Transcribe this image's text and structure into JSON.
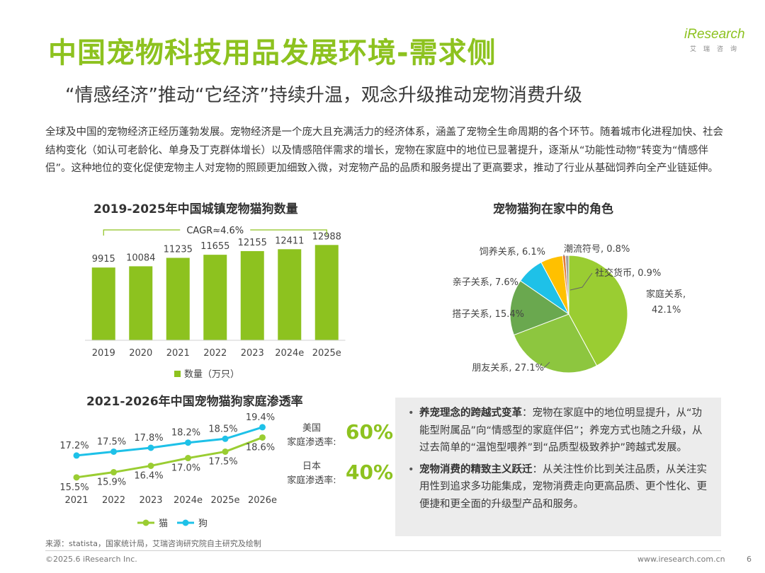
{
  "header": {
    "title": "中国宠物科技用品发展环境-需求侧",
    "subtitle": "“情感经济”推动“它经济”持续升温，观念升级推动宠物消费升级"
  },
  "logo": {
    "brand": "iResearch",
    "tagline": "艾瑞咨询"
  },
  "intro": "全球及中国的宠物经济正经历蓬勃发展。宠物经济是一个庞大且充满活力的经济体系，涵盖了宠物全生命周期的各个环节。随着城市化进程加快、社会结构变化（如认可老龄化、单身及丁克群体增长）以及情感陪伴需求的增长，宠物在家庭中的地位已显著提升，逐渐从“功能性动物”转变为“情感伴侣”。这种地位的变化促使宠物主人对宠物的照顾更加细致入微，对宠物产品的品质和服务提出了更高要求，推动了行业从基础饲养向全产业链延伸。",
  "colors": {
    "accent": "#8dc21f",
    "line_cat": "#9acd32",
    "line_dog": "#1ec1e8"
  },
  "chart_data": [
    {
      "type": "bar",
      "title": "2019-2025年中国城镇宠物猫狗数量",
      "categories": [
        "2019",
        "2020",
        "2021",
        "2022",
        "2023",
        "2024e",
        "2025e"
      ],
      "values": [
        9915,
        10084,
        11235,
        11655,
        12155,
        12411,
        12988
      ],
      "legend": "数量（万只）",
      "annotation": "CAGR≈4.6%",
      "ylim": [
        0,
        13500
      ]
    },
    {
      "type": "pie",
      "title": "宠物猫狗在家中的角色",
      "slices": [
        {
          "label": "家庭关系,",
          "value": 42.1,
          "value_label": "42.1%",
          "color": "#9acd32"
        },
        {
          "label": "朋友关系, 27.1%",
          "value": 27.1,
          "color": "#8dc63f"
        },
        {
          "label": "搭子关系, 15.4%",
          "value": 15.4,
          "color": "#6aa84f"
        },
        {
          "label": "亲子关系, 7.6%",
          "value": 7.6,
          "color": "#1ec1e8"
        },
        {
          "label": "饲养关系, 6.1%",
          "value": 6.1,
          "color": "#ffc000"
        },
        {
          "label": "潮流符号, 0.8%",
          "value": 0.8,
          "color": "#e07b39"
        },
        {
          "label": "社交货币, 0.9%",
          "value": 0.9,
          "color": "#a0a0a0"
        }
      ]
    },
    {
      "type": "line",
      "title": "2021-2026年中国宠物猫狗家庭渗透率",
      "categories": [
        "2021",
        "2022",
        "2023",
        "2024e",
        "2025e",
        "2026e"
      ],
      "series": [
        {
          "name": "猫",
          "values": [
            15.5,
            15.9,
            16.4,
            17.0,
            17.5,
            18.6
          ],
          "labels": [
            "15.5%",
            "15.9%",
            "16.4%",
            "17.0%",
            "17.5%",
            "18.6%"
          ]
        },
        {
          "name": "狗",
          "values": [
            17.2,
            17.5,
            17.8,
            18.2,
            18.5,
            19.4
          ],
          "labels": [
            "17.2%",
            "17.5%",
            "17.8%",
            "18.2%",
            "18.5%",
            "19.4%"
          ]
        }
      ],
      "ylim": [
        14.5,
        20.0
      ]
    }
  ],
  "penetration": {
    "us_label": "美国\n家庭渗透率:",
    "us_value": "60%",
    "jp_label": "日本\n家庭渗透率:",
    "jp_value": "40%"
  },
  "callout": {
    "item1_title": "养宠理念的跨越式变革",
    "item1_text": "：宠物在家庭中的地位明显提升，从“功能型附属品”向“情感型的家庭伴侣”；养宠方式也随之升级，从过去简单的“温饱型喂养”到“品质型极致养护”跨越式发展。",
    "item2_title": "宠物消费的精致主义跃迁",
    "item2_text": "：从关注性价比到关注品质，从关注实用性到追求多功能集成，宠物消费走向更高品质、更个性化、更便捷和更全面的升级型产品和服务。"
  },
  "footer": {
    "source": "来源：statista，国家统计局，艾瑞咨询研究院自主研究及绘制",
    "copyright": "©2025.6 iResearch Inc.",
    "website": "www.iresearch.com.cn",
    "page": "6"
  }
}
